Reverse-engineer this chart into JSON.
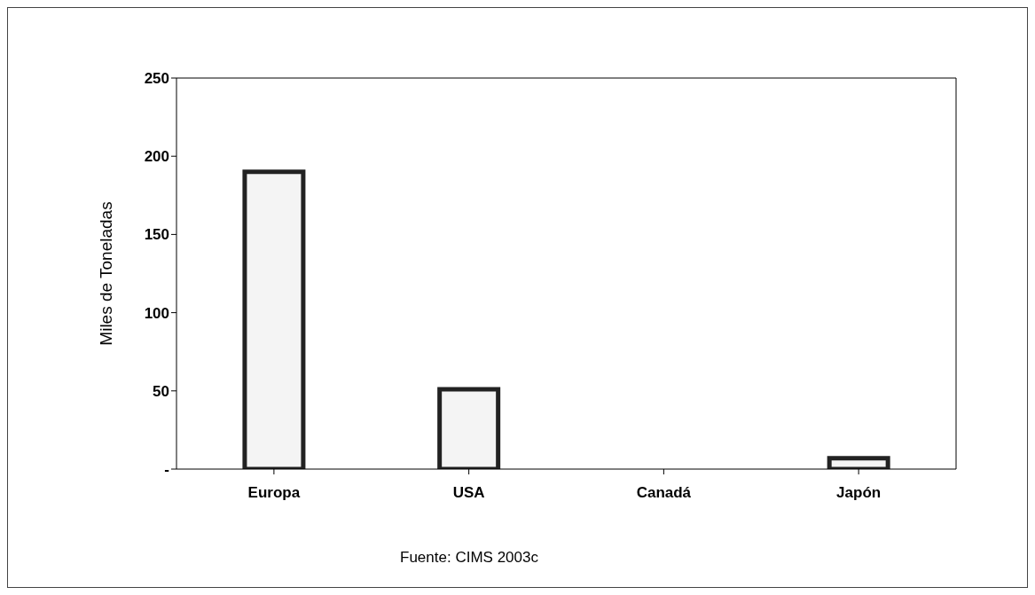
{
  "chart_data": {
    "type": "bar",
    "ylabel": "Miles de Toneladas",
    "categories": [
      "Europa",
      "USA",
      "Canadá",
      "Japón"
    ],
    "values": [
      190,
      51,
      0,
      7
    ],
    "color": "#f4f4f4",
    "ylim": [
      0,
      250
    ],
    "yticks": [
      {
        "value": 0,
        "label": "-"
      },
      50,
      100,
      150,
      200,
      250
    ],
    "annotations": [
      "Fuente: CIMS 2003c"
    ]
  }
}
